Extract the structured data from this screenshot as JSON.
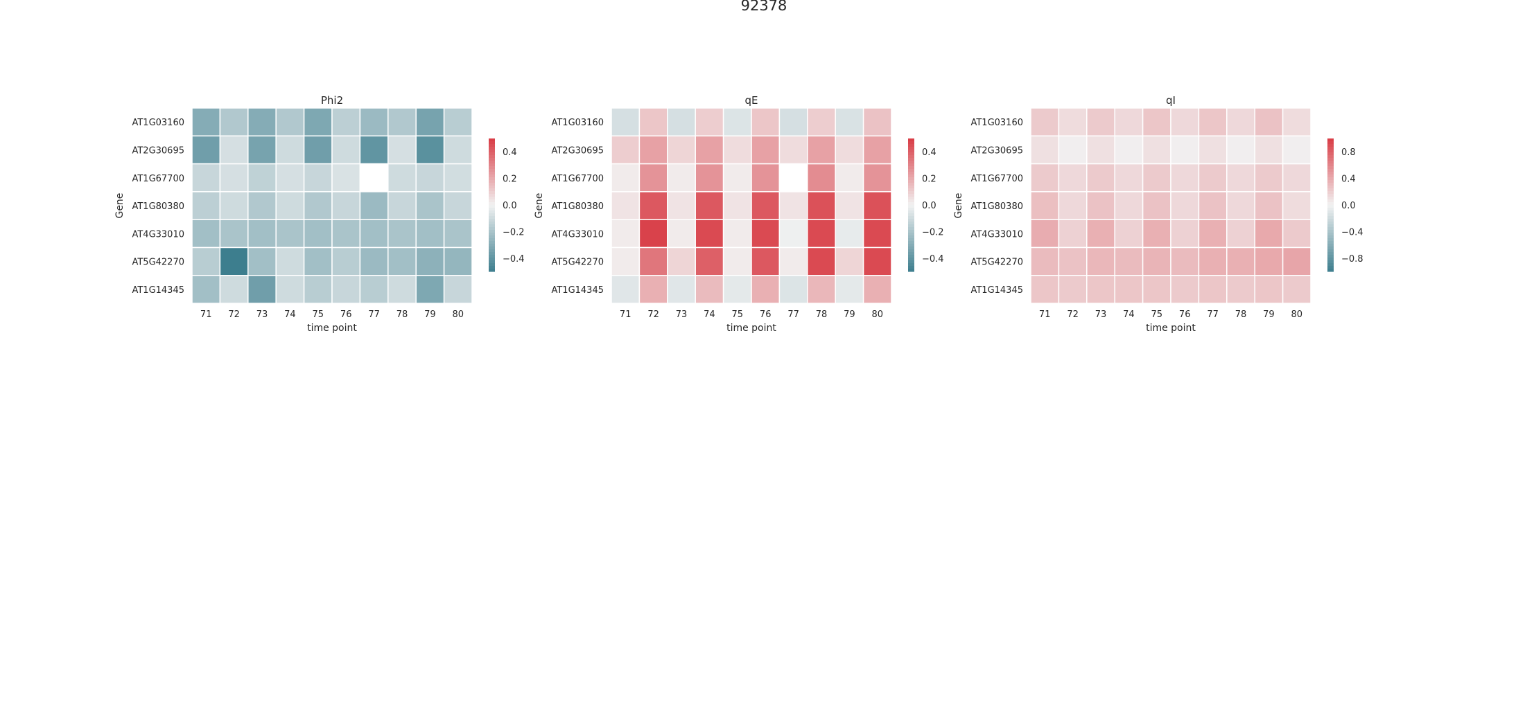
{
  "figure_title": "92378",
  "chart_data": [
    {
      "type": "heatmap",
      "title": "Phi2",
      "xlabel": "time point",
      "ylabel": "Gene",
      "x": [
        "71",
        "72",
        "73",
        "74",
        "75",
        "76",
        "77",
        "78",
        "79",
        "80"
      ],
      "y": [
        "AT1G03160",
        "AT2G30695",
        "AT1G67700",
        "AT1G80380",
        "AT4G33010",
        "AT5G42270",
        "AT1G14345"
      ],
      "values": [
        [
          -0.3,
          -0.18,
          -0.3,
          -0.18,
          -0.32,
          -0.15,
          -0.24,
          -0.18,
          -0.34,
          -0.16
        ],
        [
          -0.36,
          -0.08,
          -0.34,
          -0.1,
          -0.36,
          -0.1,
          -0.4,
          -0.08,
          -0.42,
          -0.1
        ],
        [
          -0.12,
          -0.08,
          -0.14,
          -0.08,
          -0.12,
          -0.07,
          null,
          -0.1,
          -0.12,
          -0.09
        ],
        [
          -0.15,
          -0.1,
          -0.18,
          -0.1,
          -0.18,
          -0.12,
          -0.24,
          -0.12,
          -0.2,
          -0.12
        ],
        [
          -0.22,
          -0.2,
          -0.22,
          -0.2,
          -0.22,
          -0.2,
          -0.22,
          -0.2,
          -0.22,
          -0.2
        ],
        [
          -0.16,
          -0.52,
          -0.22,
          -0.1,
          -0.22,
          -0.16,
          -0.24,
          -0.22,
          -0.28,
          -0.26
        ],
        [
          -0.22,
          -0.1,
          -0.36,
          -0.1,
          -0.16,
          -0.12,
          -0.16,
          -0.1,
          -0.32,
          -0.12
        ]
      ],
      "vmin": -0.5,
      "vmax": 0.5,
      "colorbar_ticks": [
        0.4,
        0.2,
        0.0,
        -0.2,
        -0.4
      ],
      "colorbar_tick_labels": [
        "0.4",
        "0.2",
        "0.0",
        "−0.2",
        "−0.4"
      ]
    },
    {
      "type": "heatmap",
      "title": "qE",
      "xlabel": "time point",
      "ylabel": "Gene",
      "x": [
        "71",
        "72",
        "73",
        "74",
        "75",
        "76",
        "77",
        "78",
        "79",
        "80"
      ],
      "y": [
        "AT1G03160",
        "AT2G30695",
        "AT1G67700",
        "AT1G80380",
        "AT4G33010",
        "AT5G42270",
        "AT1G14345"
      ],
      "values": [
        [
          -0.08,
          0.12,
          -0.08,
          0.1,
          -0.06,
          0.12,
          -0.08,
          0.1,
          -0.07,
          0.13
        ],
        [
          0.1,
          0.22,
          0.08,
          0.22,
          0.06,
          0.22,
          0.06,
          0.22,
          0.06,
          0.22
        ],
        [
          0.02,
          0.26,
          0.02,
          0.26,
          0.02,
          0.26,
          null,
          0.28,
          0.02,
          0.26
        ],
        [
          0.04,
          0.42,
          0.04,
          0.42,
          0.04,
          0.42,
          0.04,
          0.44,
          0.04,
          0.44
        ],
        [
          0.02,
          0.48,
          0.02,
          0.46,
          0.02,
          0.46,
          -0.01,
          0.46,
          -0.03,
          0.46
        ],
        [
          0.02,
          0.34,
          0.08,
          0.4,
          0.02,
          0.42,
          0.02,
          0.46,
          0.08,
          0.46
        ],
        [
          -0.05,
          0.18,
          -0.05,
          0.15,
          -0.04,
          0.18,
          -0.06,
          0.16,
          -0.04,
          0.18
        ]
      ],
      "vmin": -0.5,
      "vmax": 0.5,
      "colorbar_ticks": [
        0.4,
        0.2,
        0.0,
        -0.2,
        -0.4
      ],
      "colorbar_tick_labels": [
        "0.4",
        "0.2",
        "0.0",
        "−0.2",
        "−0.4"
      ]
    },
    {
      "type": "heatmap",
      "title": "qI",
      "xlabel": "time point",
      "ylabel": "Gene",
      "x": [
        "71",
        "72",
        "73",
        "74",
        "75",
        "76",
        "77",
        "78",
        "79",
        "80"
      ],
      "y": [
        "AT1G03160",
        "AT2G30695",
        "AT1G67700",
        "AT1G80380",
        "AT4G33010",
        "AT5G42270",
        "AT1G14345"
      ],
      "values": [
        [
          0.22,
          0.12,
          0.22,
          0.14,
          0.24,
          0.14,
          0.24,
          0.14,
          0.26,
          0.12
        ],
        [
          0.1,
          0.02,
          0.1,
          0.02,
          0.1,
          0.02,
          0.1,
          0.02,
          0.1,
          0.02
        ],
        [
          0.22,
          0.14,
          0.22,
          0.14,
          0.22,
          0.14,
          0.22,
          0.14,
          0.22,
          0.14
        ],
        [
          0.28,
          0.14,
          0.26,
          0.14,
          0.26,
          0.14,
          0.26,
          0.14,
          0.26,
          0.12
        ],
        [
          0.38,
          0.18,
          0.36,
          0.18,
          0.36,
          0.18,
          0.36,
          0.18,
          0.4,
          0.22
        ],
        [
          0.3,
          0.26,
          0.32,
          0.3,
          0.34,
          0.3,
          0.36,
          0.36,
          0.4,
          0.42
        ],
        [
          0.24,
          0.22,
          0.24,
          0.24,
          0.24,
          0.22,
          0.24,
          0.22,
          0.24,
          0.22
        ]
      ],
      "vmin": -1.0,
      "vmax": 1.0,
      "colorbar_ticks": [
        0.8,
        0.4,
        0.0,
        -0.4,
        -0.8
      ],
      "colorbar_tick_labels": [
        "0.8",
        "0.4",
        "0.0",
        "−0.4",
        "−0.8"
      ]
    }
  ]
}
